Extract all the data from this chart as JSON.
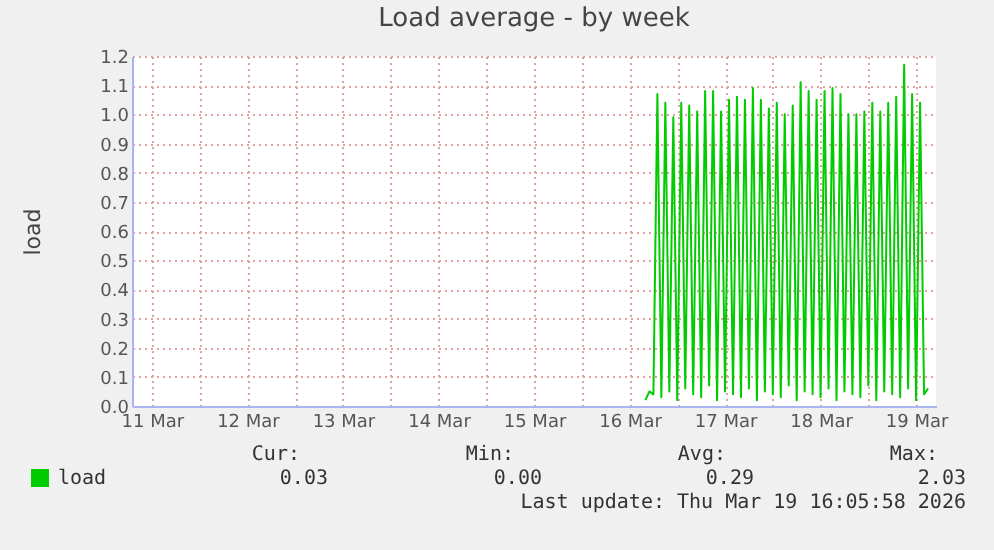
{
  "chart_data": {
    "type": "line",
    "title": "Load average - by week",
    "ylabel": "load",
    "x": [
      "2026-03-16T16:00",
      "2026-03-16T17:00",
      "2026-03-16T18:00",
      "2026-03-16T19:00",
      "2026-03-16T20:00",
      "2026-03-16T21:00",
      "2026-03-16T22:00",
      "2026-03-16T23:00",
      "2026-03-17T00:00",
      "2026-03-17T01:00",
      "2026-03-17T02:00",
      "2026-03-17T03:00",
      "2026-03-17T04:00",
      "2026-03-17T05:00",
      "2026-03-17T06:00",
      "2026-03-17T07:00",
      "2026-03-17T08:00",
      "2026-03-17T09:00",
      "2026-03-17T10:00",
      "2026-03-17T11:00",
      "2026-03-17T12:00",
      "2026-03-17T13:00",
      "2026-03-17T14:00",
      "2026-03-17T15:00",
      "2026-03-17T16:00",
      "2026-03-17T17:00",
      "2026-03-17T18:00",
      "2026-03-17T19:00",
      "2026-03-17T20:00",
      "2026-03-17T21:00",
      "2026-03-17T22:00",
      "2026-03-17T23:00",
      "2026-03-18T00:00",
      "2026-03-18T01:00",
      "2026-03-18T02:00",
      "2026-03-18T03:00",
      "2026-03-18T04:00",
      "2026-03-18T05:00",
      "2026-03-18T06:00",
      "2026-03-18T07:00",
      "2026-03-18T08:00",
      "2026-03-18T09:00",
      "2026-03-18T10:00",
      "2026-03-18T11:00",
      "2026-03-18T12:00",
      "2026-03-18T13:00",
      "2026-03-18T14:00",
      "2026-03-18T15:00",
      "2026-03-18T16:00",
      "2026-03-18T17:00",
      "2026-03-18T18:00",
      "2026-03-18T19:00",
      "2026-03-18T20:00",
      "2026-03-18T21:00",
      "2026-03-18T22:00",
      "2026-03-18T23:00",
      "2026-03-19T00:00",
      "2026-03-19T01:00",
      "2026-03-19T02:00",
      "2026-03-19T03:00",
      "2026-03-19T04:00",
      "2026-03-19T05:00",
      "2026-03-19T06:00",
      "2026-03-19T07:00",
      "2026-03-19T08:00",
      "2026-03-19T09:00",
      "2026-03-19T10:00",
      "2026-03-19T11:00",
      "2026-03-19T12:00",
      "2026-03-19T13:00",
      "2026-03-19T14:00",
      "2026-03-19T15:00"
    ],
    "series": [
      {
        "name": "load",
        "color": "#00cc00",
        "values": [
          0.02,
          0.05,
          0.04,
          1.07,
          0.03,
          1.04,
          0.05,
          0.99,
          0.02,
          1.04,
          0.06,
          1.03,
          0.04,
          1.01,
          0.03,
          1.08,
          0.07,
          1.08,
          0.02,
          1.01,
          0.05,
          1.05,
          0.04,
          1.06,
          0.03,
          1.05,
          0.06,
          1.09,
          0.02,
          1.05,
          0.05,
          1.02,
          0.04,
          1.04,
          0.03,
          1.0,
          0.07,
          1.03,
          0.02,
          1.11,
          0.05,
          1.08,
          0.04,
          1.05,
          0.03,
          1.08,
          0.06,
          1.09,
          0.02,
          1.07,
          0.05,
          1.0,
          0.04,
          1.0,
          0.03,
          1.01,
          0.07,
          1.04,
          0.02,
          1.01,
          0.05,
          1.04,
          0.04,
          1.06,
          0.03,
          1.17,
          0.06,
          1.07,
          0.02,
          1.04,
          0.04,
          0.06
        ]
      }
    ],
    "xlim": [
      "2026-03-11T07:00",
      "2026-03-19T17:00"
    ],
    "xticks": [
      {
        "value": "2026-03-11T12:00",
        "label": "11 Mar"
      },
      {
        "value": "2026-03-12T00:00",
        "label": null
      },
      {
        "value": "2026-03-12T12:00",
        "label": "12 Mar"
      },
      {
        "value": "2026-03-13T00:00",
        "label": null
      },
      {
        "value": "2026-03-13T12:00",
        "label": "13 Mar"
      },
      {
        "value": "2026-03-14T00:00",
        "label": null
      },
      {
        "value": "2026-03-14T12:00",
        "label": "14 Mar"
      },
      {
        "value": "2026-03-15T00:00",
        "label": null
      },
      {
        "value": "2026-03-15T12:00",
        "label": "15 Mar"
      },
      {
        "value": "2026-03-16T00:00",
        "label": null
      },
      {
        "value": "2026-03-16T12:00",
        "label": "16 Mar"
      },
      {
        "value": "2026-03-17T00:00",
        "label": null
      },
      {
        "value": "2026-03-17T12:00",
        "label": "17 Mar"
      },
      {
        "value": "2026-03-18T00:00",
        "label": null
      },
      {
        "value": "2026-03-18T12:00",
        "label": "18 Mar"
      },
      {
        "value": "2026-03-19T00:00",
        "label": null
      },
      {
        "value": "2026-03-19T12:00",
        "label": "19 Mar"
      }
    ],
    "ylim": [
      0,
      1.2
    ],
    "yticks": [
      {
        "value": 0,
        "label": "0.0"
      },
      {
        "value": 0.1,
        "label": "0.1"
      },
      {
        "value": 0.2,
        "label": "0.2"
      },
      {
        "value": 0.3,
        "label": "0.3"
      },
      {
        "value": 0.4,
        "label": "0.4"
      },
      {
        "value": 0.5,
        "label": "0.5"
      },
      {
        "value": 0.6,
        "label": "0.6"
      },
      {
        "value": 0.7,
        "label": "0.7"
      },
      {
        "value": 0.8,
        "label": "0.8"
      },
      {
        "value": 0.9,
        "label": "0.9"
      },
      {
        "value": 1,
        "label": "1.0"
      },
      {
        "value": 1.1,
        "label": "1.1"
      },
      {
        "value": 1.2,
        "label": "1.2"
      }
    ],
    "grid": true,
    "legend": "bottom left",
    "marker": "none",
    "line_style": "solid",
    "annotations": [
      "Cur:",
      "Min:",
      "Avg:",
      "Max:",
      "0.03",
      "0.00",
      "0.29",
      "2.03",
      "Last update: Thu Mar 19 16:05:58 2026"
    ]
  }
}
